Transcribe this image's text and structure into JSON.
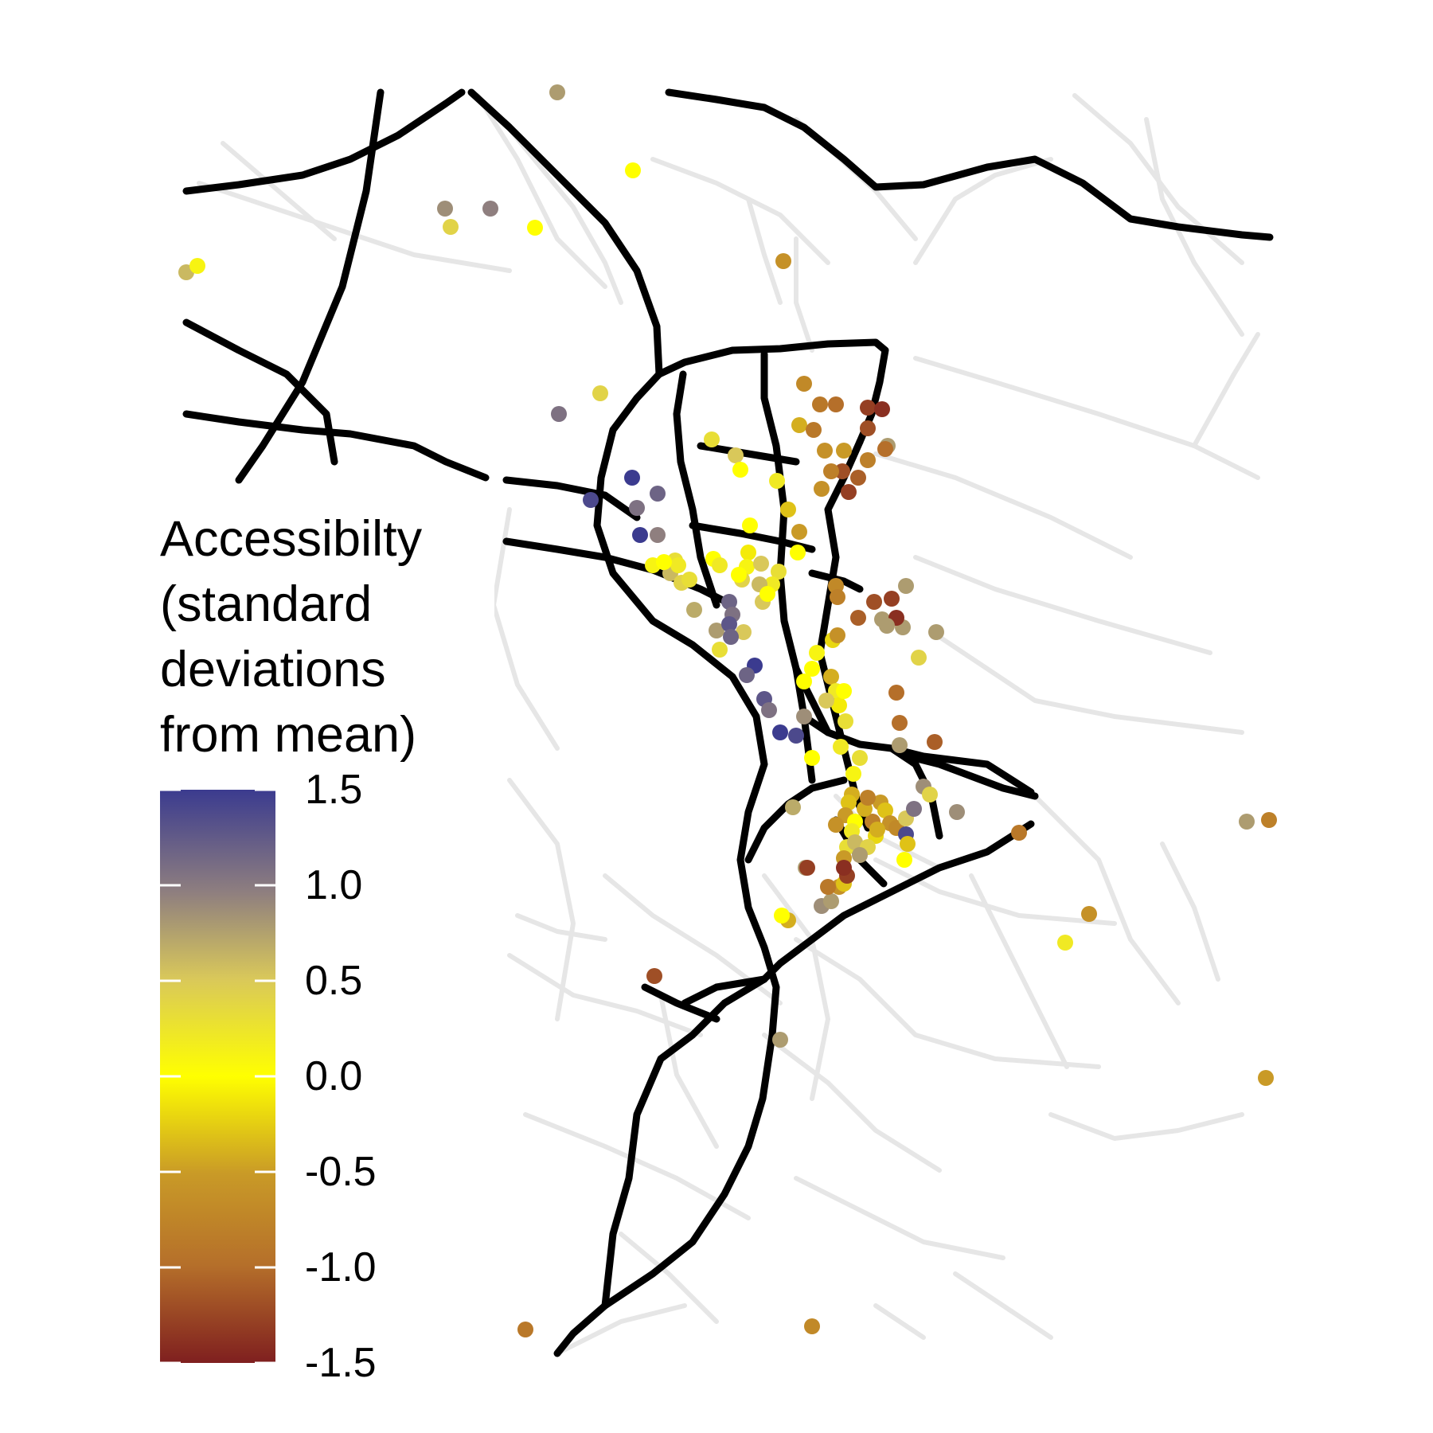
{
  "legend": {
    "title_lines": [
      "Accessibilty",
      "(standard",
      "deviations",
      "from mean)"
    ],
    "ticks": [
      "1.5",
      "1.0",
      "0.5",
      "0.0",
      "-0.5",
      "-1.0",
      "-1.5"
    ],
    "tick_values": [
      1.5,
      1.0,
      0.5,
      0.0,
      -0.5,
      -1.0,
      -1.5
    ],
    "range": [
      -1.5,
      1.5
    ],
    "colors": {
      "high": "#3b3b8f",
      "mid_high": "#8f7f7f",
      "mid": "#ffff00",
      "mid_low": "#c99a27",
      "low": "#7f1f1f"
    }
  },
  "map": {
    "major_road_color": "#000000",
    "minor_road_color": "#e8e8e8",
    "points": [
      {
        "v": 0.8
      },
      {
        "v": 0.0
      },
      {
        "v": 0.9
      },
      {
        "v": 1.0
      },
      {
        "v": 0.0
      },
      {
        "v": 0.4
      },
      {
        "v": 0.6
      },
      {
        "v": 0.1
      },
      {
        "v": -0.6
      },
      {
        "v": 0.4
      },
      {
        "v": 1.1
      },
      {
        "v": -0.7
      },
      {
        "v": -0.9
      },
      {
        "v": -1.0
      },
      {
        "v": -1.3
      },
      {
        "v": -1.4
      },
      {
        "v": -1.2
      },
      {
        "v": -0.4
      },
      {
        "v": -0.9
      },
      {
        "v": -0.6
      },
      {
        "v": -0.5
      },
      {
        "v": -1.2
      },
      {
        "v": -1.1
      },
      {
        "v": -1.3
      },
      {
        "v": -0.8
      },
      {
        "v": -0.6
      },
      {
        "v": 0.3
      },
      {
        "v": 0.5
      },
      {
        "v": 0.0
      },
      {
        "v": 0.2
      },
      {
        "v": -0.3
      },
      {
        "v": 1.4
      },
      {
        "v": 1.5
      },
      {
        "v": 1.2
      },
      {
        "v": 1.1
      },
      {
        "v": 1.5
      },
      {
        "v": 1.0
      },
      {
        "v": 0.1
      },
      {
        "v": 0.3
      },
      {
        "v": 0.0
      },
      {
        "v": -0.5
      },
      {
        "v": -0.1
      },
      {
        "v": 0.0
      },
      {
        "v": 0.6
      },
      {
        "v": 0.2
      },
      {
        "v": 0.4
      },
      {
        "v": 0.0
      },
      {
        "v": 0.3
      },
      {
        "v": 0.2
      },
      {
        "v": 0.1
      },
      {
        "v": 0.5
      },
      {
        "v": 0.4
      },
      {
        "v": 0.0
      },
      {
        "v": 0.3
      },
      {
        "v": 0.2
      },
      {
        "v": 0.6
      },
      {
        "v": 1.2
      },
      {
        "v": 1.1
      },
      {
        "v": 0.8
      },
      {
        "v": 0.5
      },
      {
        "v": 0.7
      },
      {
        "v": 0.3
      },
      {
        "v": -0.7
      },
      {
        "v": 0.0
      },
      {
        "v": 0.5
      },
      {
        "v": -0.8
      },
      {
        "v": 1.3
      },
      {
        "v": 1.2
      },
      {
        "v": 0.0
      },
      {
        "v": 1.5
      },
      {
        "v": 1.2
      },
      {
        "v": 1.3
      },
      {
        "v": 1.1
      },
      {
        "v": 1.5
      },
      {
        "v": 1.4
      },
      {
        "v": 0.0
      },
      {
        "v": 0.1
      },
      {
        "v": -0.2
      },
      {
        "v": -0.4
      },
      {
        "v": 0.0
      },
      {
        "v": 0.2
      },
      {
        "v": -0.1
      },
      {
        "v": 0.5
      },
      {
        "v": 0.0
      },
      {
        "v": 0.3
      },
      {
        "v": 0.9
      },
      {
        "v": -0.6
      },
      {
        "v": 0.0
      },
      {
        "v": 0.2
      },
      {
        "v": 0.1
      },
      {
        "v": 0.3
      },
      {
        "v": -0.4
      },
      {
        "v": -0.3
      },
      {
        "v": -0.5
      },
      {
        "v": 0.0
      },
      {
        "v": 0.2
      },
      {
        "v": -0.6
      },
      {
        "v": -0.8
      },
      {
        "v": -0.4
      },
      {
        "v": -0.5
      },
      {
        "v": -0.3
      },
      {
        "v": -0.6
      },
      {
        "v": -0.2
      },
      {
        "v": 0.3
      },
      {
        "v": 0.6
      },
      {
        "v": -0.5
      },
      {
        "v": -0.4
      },
      {
        "v": -0.7
      },
      {
        "v": 0.5
      },
      {
        "v": -0.6
      },
      {
        "v": -0.3
      },
      {
        "v": 0.4
      },
      {
        "v": 1.1
      },
      {
        "v": 0.9
      },
      {
        "v": 0.4
      },
      {
        "v": 1.4
      },
      {
        "v": -0.3
      },
      {
        "v": 0.0
      },
      {
        "v": 0.7
      },
      {
        "v": -0.4
      },
      {
        "v": 0.0
      },
      {
        "v": 0.8
      },
      {
        "v": 0.9
      },
      {
        "v": 0.8
      },
      {
        "v": -0.9
      },
      {
        "v": -1.3
      },
      {
        "v": -1.4
      },
      {
        "v": -1.3
      },
      {
        "v": -1.2
      },
      {
        "v": 0.8
      },
      {
        "v": 0.8
      },
      {
        "v": 0.8
      },
      {
        "v": -0.8
      },
      {
        "v": -1.0
      },
      {
        "v": -1.3
      },
      {
        "v": 0.8
      },
      {
        "v": 0.8
      },
      {
        "v": -1.2
      },
      {
        "v": 0.8
      },
      {
        "v": -1.1
      },
      {
        "v": -1.4
      },
      {
        "v": 0.8
      },
      {
        "v": 0.8
      },
      {
        "v": 0.4
      },
      {
        "v": -1.0
      },
      {
        "v": -0.8
      },
      {
        "v": -1.0
      },
      {
        "v": -1.1
      },
      {
        "v": 0.8
      },
      {
        "v": 0.9
      },
      {
        "v": -0.9
      },
      {
        "v": 0.8
      },
      {
        "v": -0.8
      },
      {
        "v": -0.6
      },
      {
        "v": 0.2
      },
      {
        "v": -0.5
      },
      {
        "v": -0.9
      },
      {
        "v": -0.7
      },
      {
        "v": 0.0
      },
      {
        "v": -0.4
      }
    ]
  }
}
